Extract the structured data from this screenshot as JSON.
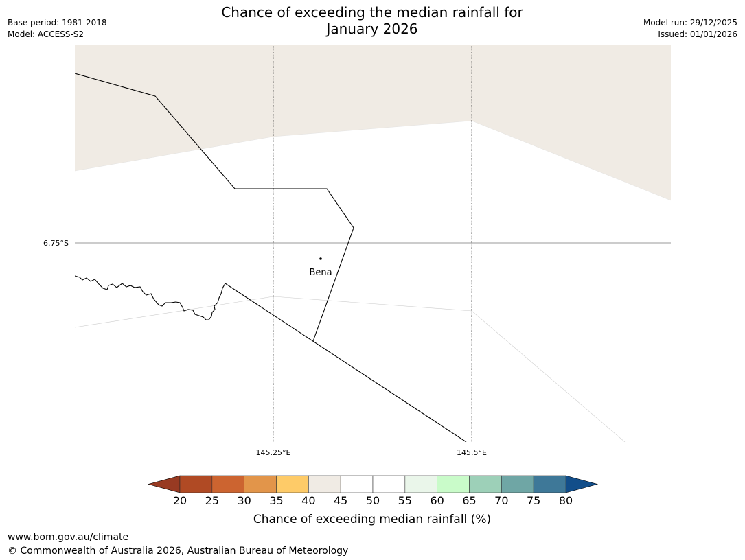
{
  "header": {
    "base_period": "Base period: 1981-2018",
    "model": "Model: ACCESS-S2",
    "model_run": "Model run: 29/12/2025",
    "issued": "Issued: 01/01/2026",
    "title_line1": "Chance of exceeding the median rainfall for",
    "title_line2": "January 2026"
  },
  "map": {
    "place_label": "Bena",
    "lat_label": "6.75°S",
    "lon_labels": [
      "145.25°E",
      "145.5°E"
    ],
    "colors": {
      "land_shade": "#f0ebe4",
      "background": "#ffffff",
      "border_line": "#000000",
      "graticule": "#333333"
    }
  },
  "legend": {
    "title": "Chance of exceeding median rainfall (%)",
    "ticks": [
      "20",
      "25",
      "30",
      "35",
      "40",
      "45",
      "50",
      "55",
      "60",
      "65",
      "70",
      "75",
      "80"
    ],
    "under_color": "#983a22",
    "over_color": "#124e8a",
    "bin_colors": [
      "#b04a24",
      "#cc6430",
      "#e2954a",
      "#fecb68",
      "#f0ebe4",
      "#ffffff",
      "#ffffff",
      "#eaf6ea",
      "#c9fbc9",
      "#9dd0b8",
      "#6fa6a5",
      "#3e7898"
    ]
  },
  "footer": {
    "url": "www.bom.gov.au/climate",
    "copyright": "© Commonwealth of Australia 2026, Australian Bureau of Meteorology"
  }
}
